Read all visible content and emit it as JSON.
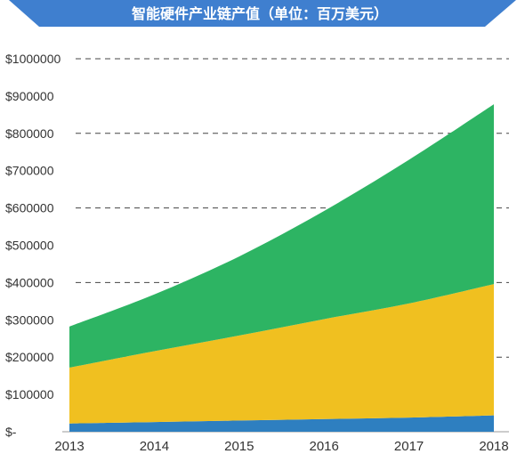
{
  "chart_data": {
    "type": "area",
    "title": "智能硬件产业链产值（单位：百万美元）",
    "stacked": true,
    "x": [
      "2013",
      "2014",
      "2015",
      "2016",
      "2017",
      "2018"
    ],
    "ylim": [
      0,
      1000000
    ],
    "y_ticks": [
      "$-",
      "$100000",
      "$200000",
      "$300000",
      "$400000",
      "$500000",
      "$600000",
      "$700000",
      "$800000",
      "$900000",
      "$1000000"
    ],
    "grid": "dashed horizontal lines at every other tick",
    "series": [
      {
        "color": "#2e7fc0",
        "values": [
          22000,
          26000,
          30000,
          34000,
          38000,
          44000
        ]
      },
      {
        "color": "#f0c020",
        "values": [
          150000,
          190000,
          228000,
          268000,
          306000,
          352000
        ]
      },
      {
        "color": "#2db463",
        "values": [
          110000,
          152000,
          212000,
          290000,
          385000,
          482000
        ]
      }
    ]
  },
  "header": {
    "banner_color": "#3f7fcf",
    "watermark": "..."
  }
}
